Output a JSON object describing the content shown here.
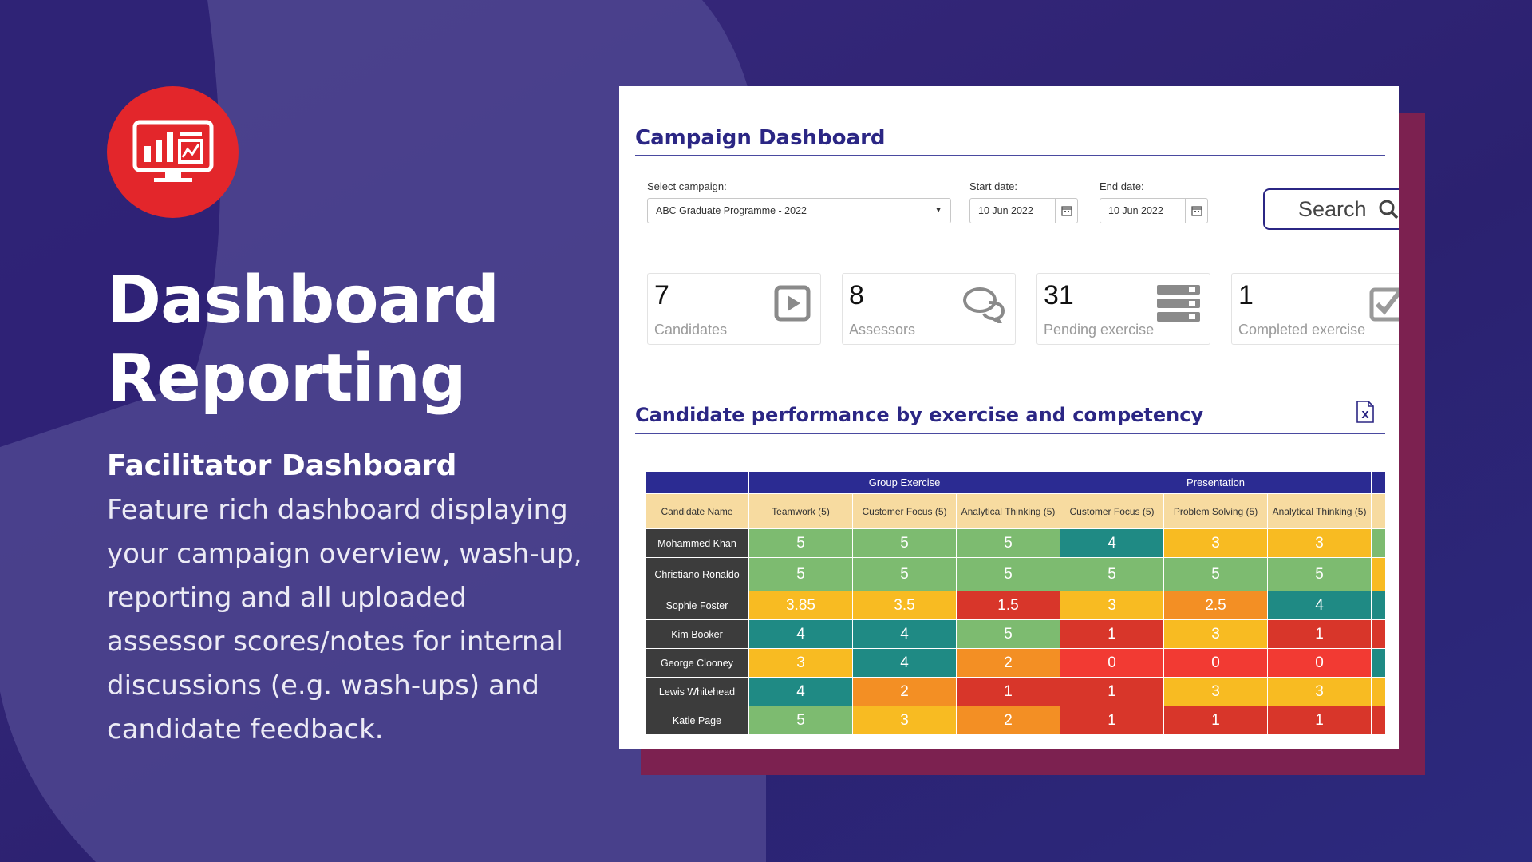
{
  "hero": {
    "title_line1": "Dashboard",
    "title_line2": "Reporting",
    "subtitle": "Facilitator Dashboard",
    "description": "Feature rich dashboard displaying your campaign overview, wash-up, reporting and all uploaded assessor scores/notes for internal discussions (e.g. wash-ups) and candidate feedback.",
    "logo_icon": "monitor-chart-icon"
  },
  "dashboard": {
    "title": "Campaign Dashboard",
    "filters": {
      "campaign_label": "Select campaign:",
      "campaign_value": "ABC Graduate Programme - 2022",
      "start_label": "Start date:",
      "start_value": "10 Jun 2022",
      "end_label": "End date:",
      "end_value": "10 Jun 2022",
      "search_label": "Search"
    },
    "stats": [
      {
        "value": "7",
        "label": "Candidates",
        "icon": "play-icon"
      },
      {
        "value": "8",
        "label": "Assessors",
        "icon": "chat-bubbles-icon"
      },
      {
        "value": "31",
        "label": "Pending exercise",
        "icon": "list-icon"
      },
      {
        "value": "1",
        "label": "Completed exercise",
        "icon": "checkbox-icon"
      }
    ],
    "performance_title": "Candidate performance by exercise and competency",
    "table": {
      "groups": [
        "Group Exercise",
        "Presentation"
      ],
      "name_header": "Candidate Name",
      "columns": [
        "Teamwork (5)",
        "Customer Focus (5)",
        "Analytical Thinking (5)",
        "Customer Focus (5)",
        "Problem Solving (5)",
        "Analytical Thinking (5)"
      ],
      "rows": [
        {
          "name": "Mohammed Khan",
          "scores": [
            "5",
            "5",
            "5",
            "4",
            "3",
            "3"
          ]
        },
        {
          "name": "Christiano Ronaldo",
          "scores": [
            "5",
            "5",
            "5",
            "5",
            "5",
            "5"
          ]
        },
        {
          "name": "Sophie Foster",
          "scores": [
            "3.85",
            "3.5",
            "1.5",
            "3",
            "2.5",
            "4"
          ]
        },
        {
          "name": "Kim Booker",
          "scores": [
            "4",
            "4",
            "5",
            "1",
            "3",
            "1"
          ]
        },
        {
          "name": "George Clooney",
          "scores": [
            "3",
            "4",
            "2",
            "0",
            "0",
            "0"
          ]
        },
        {
          "name": "Lewis Whitehead",
          "scores": [
            "4",
            "2",
            "1",
            "1",
            "3",
            "3"
          ]
        },
        {
          "name": "Katie Page",
          "scores": [
            "5",
            "3",
            "2",
            "1",
            "1",
            "1"
          ]
        }
      ]
    }
  },
  "colors": {
    "accent_red": "#e3262b",
    "navy": "#2b2684",
    "score_5": "#7dbb70",
    "score_4": "#1f8a84",
    "score_3": "#f8bb22",
    "score_2": "#f38f24",
    "score_1": "#d8362a",
    "score_0": "#f23a33"
  }
}
